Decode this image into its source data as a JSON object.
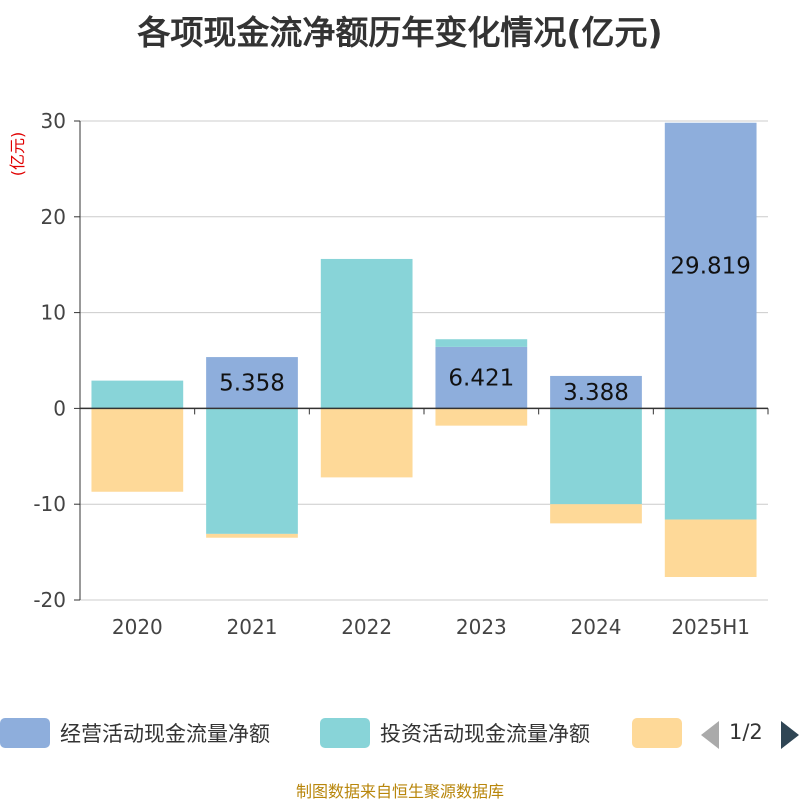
{
  "title": "各项现金流净额历年变化情况(亿元)",
  "unit_label": "(亿元)",
  "source": "制图数据来自恒生聚源数据库",
  "legend": {
    "items": [
      {
        "label": "经营活动现金流量净额",
        "color": "#8eaedc"
      },
      {
        "label": "投资活动现金流量净额",
        "color": "#88d4d8"
      },
      {
        "label": "",
        "color": "#fed998"
      }
    ],
    "page": "1/2"
  },
  "chart_data": {
    "type": "bar",
    "stacked": true,
    "categories": [
      "2020",
      "2021",
      "2022",
      "2023",
      "2024",
      "2025H1"
    ],
    "ylim": [
      -20,
      30
    ],
    "yticks": [
      30,
      20,
      10,
      0,
      -10,
      -20
    ],
    "grid": true,
    "series": [
      {
        "name": "经营活动现金流量净额",
        "color": "#8eaedc",
        "values": [
          0,
          5.358,
          0,
          6.421,
          3.388,
          29.819
        ],
        "labels": [
          "",
          "5.358",
          "",
          "6.421",
          "3.388",
          "29.819"
        ]
      },
      {
        "name": "投资活动现金流量净额",
        "color": "#88d4d8",
        "values": [
          2.9,
          -13.1,
          15.6,
          0.8,
          -10.0,
          -11.6
        ]
      },
      {
        "color": "#fed998",
        "values": [
          -8.7,
          -0.4,
          -7.2,
          -1.8,
          -2.0,
          -6.0
        ]
      }
    ]
  }
}
